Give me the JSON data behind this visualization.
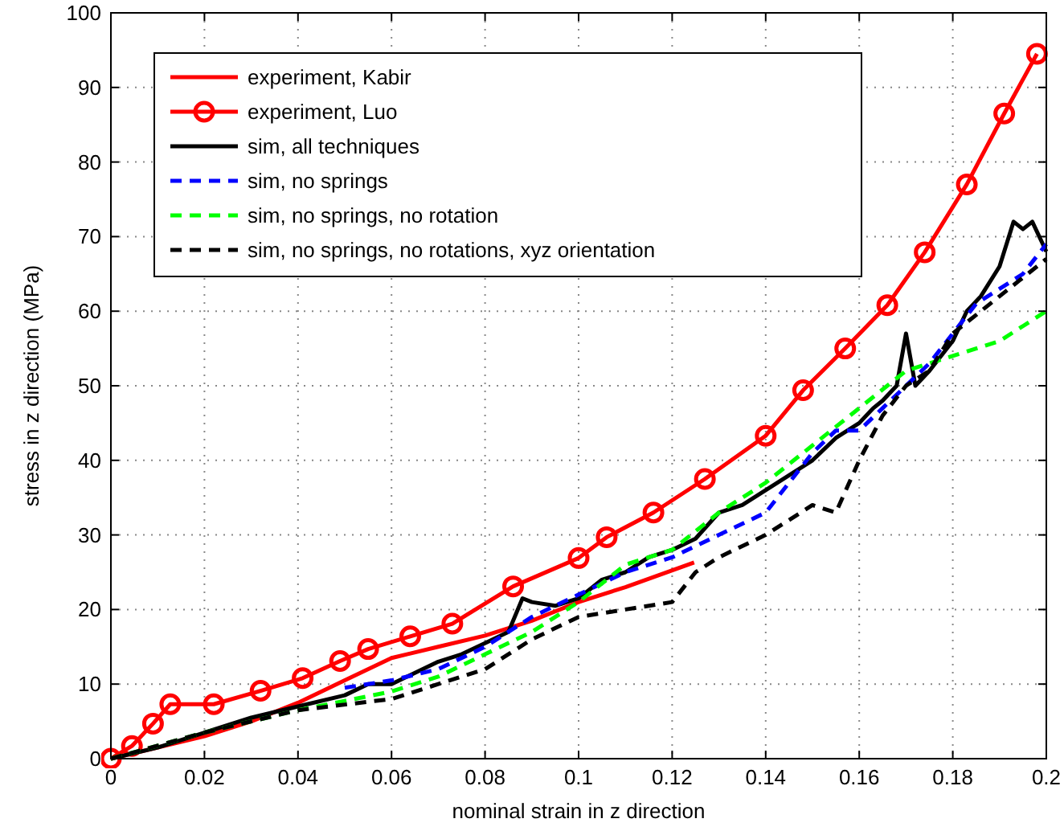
{
  "chart_data": {
    "type": "line",
    "xlabel": "nominal strain in z direction",
    "ylabel": "stress in z direction (MPa)",
    "xlim": [
      0,
      0.2
    ],
    "ylim": [
      0,
      100
    ],
    "xticks": [
      0,
      0.02,
      0.04,
      0.06,
      0.08,
      0.1,
      0.12,
      0.14,
      0.16,
      0.18,
      0.2
    ],
    "yticks": [
      0,
      10,
      20,
      30,
      40,
      50,
      60,
      70,
      80,
      90,
      100
    ],
    "grid": true,
    "legend": "top left",
    "series": [
      {
        "name": "experiment, Kabir",
        "color": "#ff0000",
        "marker": "none",
        "line_style": "solid",
        "x": [
          0,
          0.01,
          0.02,
          0.03,
          0.04,
          0.05,
          0.06,
          0.07,
          0.08,
          0.09,
          0.1,
          0.11,
          0.1247
        ],
        "values": [
          0,
          1.5,
          3,
          5,
          7.5,
          10.5,
          13.5,
          15,
          16.5,
          18.5,
          21,
          23,
          26.3
        ]
      },
      {
        "name": "experiment, Luo",
        "color": "#ff0000",
        "marker": "circle",
        "line_style": "solid",
        "x": [
          0,
          0.0045,
          0.009,
          0.0127,
          0.022,
          0.032,
          0.041,
          0.049,
          0.055,
          0.064,
          0.073,
          0.086,
          0.1,
          0.106,
          0.116,
          0.127,
          0.14,
          0.148,
          0.157,
          0.166,
          0.174,
          0.183,
          0.191,
          0.198
        ],
        "values": [
          0,
          1.7,
          4.7,
          7.3,
          7.3,
          9.1,
          10.8,
          13.1,
          14.7,
          16.4,
          18.1,
          23.1,
          26.9,
          29.7,
          33,
          37.5,
          43.3,
          49.4,
          55,
          60.8,
          67.9,
          77,
          86.5,
          94.5
        ]
      },
      {
        "name": "sim, all techniques",
        "color": "#000000",
        "marker": "none",
        "line_style": "solid",
        "x": [
          0,
          0.01,
          0.02,
          0.03,
          0.04,
          0.05,
          0.055,
          0.06,
          0.065,
          0.07,
          0.075,
          0.08,
          0.085,
          0.088,
          0.09,
          0.095,
          0.1,
          0.105,
          0.11,
          0.115,
          0.12,
          0.125,
          0.13,
          0.135,
          0.14,
          0.145,
          0.15,
          0.155,
          0.16,
          0.163,
          0.165,
          0.168,
          0.17,
          0.172,
          0.175,
          0.18,
          0.183,
          0.186,
          0.19,
          0.193,
          0.195,
          0.197,
          0.2
        ],
        "values": [
          0,
          1.5,
          3.5,
          5.5,
          7,
          8.5,
          10,
          10,
          11.5,
          13,
          14,
          15.5,
          17,
          21.5,
          21,
          20.5,
          21.5,
          24,
          25,
          27,
          28,
          29.5,
          33,
          34,
          36,
          38,
          40,
          43,
          45,
          47,
          48,
          50,
          57,
          50,
          52,
          56,
          60,
          62,
          66,
          72,
          71,
          72,
          68
        ]
      },
      {
        "name": "sim, no springs",
        "color": "#0000ff",
        "marker": "none",
        "line_style": "dashed",
        "x": [
          0.05,
          0.06,
          0.07,
          0.08,
          0.09,
          0.1,
          0.11,
          0.12,
          0.13,
          0.14,
          0.145,
          0.15,
          0.155,
          0.16,
          0.165,
          0.17,
          0.175,
          0.18,
          0.185,
          0.19,
          0.195,
          0.2
        ],
        "values": [
          9.5,
          10.5,
          12,
          15,
          19,
          22,
          25,
          27,
          30,
          33,
          37,
          41,
          44,
          44,
          47,
          50,
          53,
          57,
          61,
          63,
          65,
          69
        ]
      },
      {
        "name": "sim, no springs, no rotation",
        "color": "#00ff00",
        "marker": "none",
        "line_style": "dashed",
        "x": [
          0,
          0.02,
          0.04,
          0.06,
          0.07,
          0.08,
          0.09,
          0.1,
          0.11,
          0.12,
          0.13,
          0.14,
          0.15,
          0.16,
          0.17,
          0.175,
          0.18,
          0.19,
          0.2
        ],
        "values": [
          0,
          3.5,
          6.5,
          9,
          11,
          14,
          17,
          21,
          26,
          28,
          33,
          37,
          42,
          47,
          52,
          53,
          54,
          56,
          60
        ]
      },
      {
        "name": "sim, no springs, no rotations, xyz orientation",
        "color": "#000000",
        "marker": "none",
        "line_style": "dashed",
        "x": [
          0,
          0.02,
          0.04,
          0.06,
          0.07,
          0.08,
          0.09,
          0.1,
          0.11,
          0.12,
          0.125,
          0.13,
          0.14,
          0.15,
          0.155,
          0.16,
          0.165,
          0.17,
          0.175,
          0.18,
          0.19,
          0.2
        ],
        "values": [
          0,
          3.5,
          6.5,
          8,
          10,
          12,
          16,
          19,
          20,
          21,
          25,
          27,
          30,
          34,
          33,
          40,
          46,
          50,
          52,
          57,
          62,
          67
        ]
      }
    ]
  }
}
